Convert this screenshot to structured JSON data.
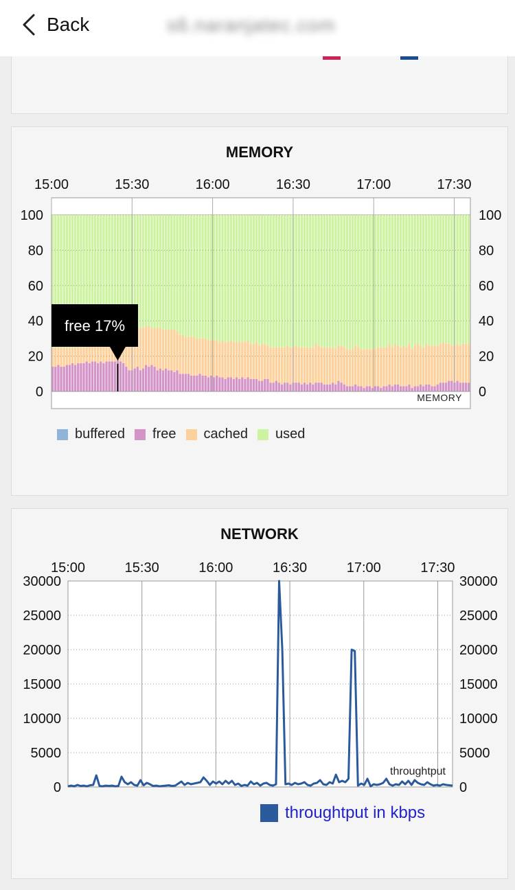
{
  "nav": {
    "back_label": "Back",
    "domain": "s6.naranjatec.com"
  },
  "top_card": {
    "legend_colors": [
      "#cc2255",
      "#1a4e94"
    ]
  },
  "memory_chart": {
    "title": "MEMORY",
    "x_ticks": [
      "15:00",
      "15:30",
      "16:00",
      "16:30",
      "17:00",
      "17:30"
    ],
    "y_ticks": [
      "0",
      "20",
      "40",
      "60",
      "80",
      "100"
    ],
    "corner_label": "MEMORY",
    "tooltip": "free 17%",
    "legend": [
      {
        "label": "buffered",
        "color": "#8fb3d9"
      },
      {
        "label": "free",
        "color": "#d494c8"
      },
      {
        "label": "cached",
        "color": "#fdd19c"
      },
      {
        "label": "used",
        "color": "#cdf3a0"
      }
    ]
  },
  "network_chart": {
    "title": "NETWORK",
    "x_ticks": [
      "15:00",
      "15:30",
      "16:00",
      "16:30",
      "17:00",
      "17:30"
    ],
    "y_ticks": [
      "0",
      "5000",
      "10000",
      "15000",
      "20000",
      "25000",
      "30000"
    ],
    "corner_label": "throughtput",
    "legend_label": "throughtput in kbps",
    "line_color": "#2a5a9c"
  },
  "chart_data": [
    {
      "type": "bar",
      "stacked": true,
      "title": "MEMORY",
      "x_start": "15:00",
      "x_end": "17:36",
      "x_tick_labels": [
        "15:00",
        "15:30",
        "16:00",
        "16:30",
        "17:00",
        "17:30"
      ],
      "ylim": [
        0,
        100
      ],
      "series": [
        {
          "name": "buffered",
          "values": [
            0,
            0,
            0,
            0,
            0,
            0,
            0,
            0,
            0,
            0,
            0,
            0,
            0,
            0,
            0,
            0,
            0,
            0,
            0,
            0,
            0,
            0,
            0,
            0,
            0,
            0,
            0,
            0,
            0,
            0,
            0,
            0,
            0,
            0,
            0,
            0,
            0,
            0,
            0,
            0,
            0,
            0,
            0,
            0,
            0,
            0,
            0,
            0,
            0,
            0,
            0,
            0,
            0,
            0,
            0,
            0,
            0,
            0,
            0,
            0,
            0,
            0,
            0,
            0,
            0,
            0,
            0,
            0,
            0,
            0,
            0,
            0,
            0,
            0,
            0,
            0,
            0,
            0,
            0,
            0,
            0,
            0,
            0,
            0,
            0,
            0,
            0,
            0,
            0,
            0,
            0,
            0,
            0,
            0,
            0,
            0,
            0,
            0,
            0,
            0,
            0,
            0,
            0,
            0,
            0,
            0,
            0,
            0,
            0,
            0,
            0,
            0,
            0,
            0,
            0,
            0,
            0,
            0,
            0,
            0,
            0,
            0,
            0,
            0,
            0,
            0,
            0,
            0,
            0,
            0,
            0,
            0,
            0,
            0,
            0,
            0,
            0,
            0,
            0,
            0,
            0,
            0,
            0,
            0,
            0,
            0,
            0,
            0,
            0,
            0,
            0,
            0,
            0,
            0,
            0
          ]
        },
        {
          "name": "free",
          "values": [
            14,
            14,
            15,
            14,
            14,
            15,
            15,
            16,
            15,
            16,
            16,
            16,
            17,
            16,
            17,
            17,
            16,
            17,
            16,
            17,
            17,
            17,
            17,
            18,
            17,
            16,
            14,
            12,
            12,
            13,
            14,
            12,
            13,
            15,
            14,
            15,
            14,
            12,
            13,
            12,
            13,
            12,
            12,
            11,
            12,
            10,
            10,
            10,
            10,
            9,
            9,
            9,
            10,
            9,
            9,
            8,
            9,
            8,
            9,
            8,
            8,
            7,
            8,
            8,
            7,
            8,
            7,
            8,
            7,
            8,
            7,
            7,
            7,
            6,
            6,
            7,
            7,
            5,
            5,
            6,
            5,
            4,
            5,
            5,
            4,
            5,
            5,
            5,
            4,
            5,
            4,
            5,
            4,
            5,
            5,
            5,
            4,
            4,
            4,
            5,
            4,
            6,
            5,
            4,
            3,
            3,
            3,
            4,
            3,
            3,
            2,
            3,
            3,
            2,
            3,
            3,
            2,
            3,
            3,
            4,
            3,
            4,
            4,
            3,
            3,
            3,
            4,
            2,
            3,
            3,
            4,
            3,
            4,
            4,
            3,
            3,
            4,
            5,
            5,
            5,
            6,
            6,
            5,
            6,
            5,
            5,
            5,
            5
          ]
        },
        {
          "name": "cached",
          "values": [
            11,
            11,
            10,
            11,
            11,
            10,
            10,
            9,
            10,
            9,
            9,
            9,
            9,
            10,
            9,
            9,
            10,
            9,
            10,
            10,
            10,
            10,
            11,
            10,
            12,
            14,
            18,
            21,
            22,
            22,
            22,
            24,
            23,
            22,
            23,
            21,
            22,
            24,
            23,
            23,
            22,
            23,
            23,
            24,
            22,
            22,
            22,
            21,
            21,
            22,
            22,
            21,
            20,
            21,
            21,
            21,
            20,
            21,
            20,
            20,
            21,
            21,
            20,
            21,
            21,
            20,
            21,
            20,
            21,
            21,
            20,
            20,
            21,
            20,
            21,
            20,
            19,
            20,
            20,
            19,
            20,
            21,
            20,
            21,
            21,
            20,
            21,
            20,
            21,
            20,
            21,
            20,
            21,
            22,
            21,
            20,
            21,
            21,
            21,
            20,
            20,
            20,
            21,
            21,
            21,
            21,
            21,
            22,
            22,
            21,
            22,
            21,
            21,
            22,
            21,
            22,
            23,
            22,
            22,
            23,
            22,
            23,
            22,
            22,
            23,
            22,
            23,
            22,
            23,
            24,
            22,
            22,
            23,
            22,
            23,
            23,
            22,
            22,
            23,
            22,
            21,
            20,
            21,
            21,
            21,
            22,
            22,
            22
          ]
        },
        {
          "name": "used",
          "values": [
            75,
            75,
            75,
            75,
            75,
            75,
            75,
            75,
            75,
            75,
            75,
            75,
            74,
            74,
            74,
            74,
            74,
            74,
            74,
            73,
            73,
            73,
            72,
            72,
            71,
            70,
            68,
            67,
            66,
            65,
            64,
            64,
            64,
            63,
            63,
            64,
            64,
            64,
            64,
            65,
            65,
            65,
            65,
            65,
            66,
            68,
            68,
            69,
            69,
            69,
            69,
            70,
            70,
            70,
            70,
            71,
            71,
            71,
            71,
            72,
            71,
            72,
            72,
            71,
            72,
            72,
            72,
            72,
            72,
            71,
            73,
            73,
            72,
            74,
            73,
            73,
            74,
            75,
            75,
            75,
            75,
            75,
            75,
            74,
            75,
            75,
            74,
            75,
            75,
            75,
            75,
            75,
            75,
            73,
            74,
            75,
            75,
            75,
            75,
            75,
            76,
            74,
            74,
            75,
            76,
            76,
            76,
            74,
            75,
            76,
            76,
            76,
            76,
            76,
            76,
            75,
            75,
            75,
            75,
            73,
            75,
            73,
            74,
            75,
            74,
            75,
            73,
            76,
            74,
            73,
            74,
            75,
            73,
            74,
            74,
            74,
            74,
            73,
            72,
            73,
            73,
            74,
            74,
            73,
            74,
            73,
            73,
            73
          ]
        }
      ]
    },
    {
      "type": "line",
      "title": "NETWORK",
      "x_start": "15:00",
      "x_end": "17:36",
      "x_tick_labels": [
        "15:00",
        "15:30",
        "16:00",
        "16:30",
        "17:00",
        "17:30"
      ],
      "ylim": [
        0,
        30000
      ],
      "series": [
        {
          "name": "throughtput in kbps",
          "values": [
            100,
            200,
            100,
            300,
            150,
            200,
            100,
            250,
            300,
            1700,
            150,
            100,
            200,
            150,
            200,
            100,
            150,
            1500,
            700,
            400,
            700,
            300,
            200,
            1000,
            250,
            600,
            400,
            150,
            200,
            100,
            150,
            200,
            250,
            150,
            200,
            500,
            800,
            300,
            600,
            400,
            500,
            600,
            700,
            1400,
            900,
            300,
            800,
            500,
            800,
            400,
            900,
            500,
            900,
            300,
            500,
            150,
            300,
            200,
            800,
            400,
            600,
            200,
            500,
            600,
            300,
            200,
            400,
            30000,
            20000,
            400,
            500,
            300,
            600,
            400,
            500,
            700,
            300,
            200,
            500,
            600,
            1000,
            400,
            300,
            700,
            500,
            1800,
            700,
            900,
            700,
            1200,
            20000,
            19800,
            200,
            500,
            300,
            1200,
            100,
            400,
            300,
            400,
            600,
            1200,
            400,
            200,
            400,
            300,
            800,
            400,
            900,
            300,
            1000,
            600,
            400,
            300,
            700,
            400,
            200,
            300,
            200,
            400,
            300,
            250,
            200
          ]
        }
      ]
    }
  ]
}
